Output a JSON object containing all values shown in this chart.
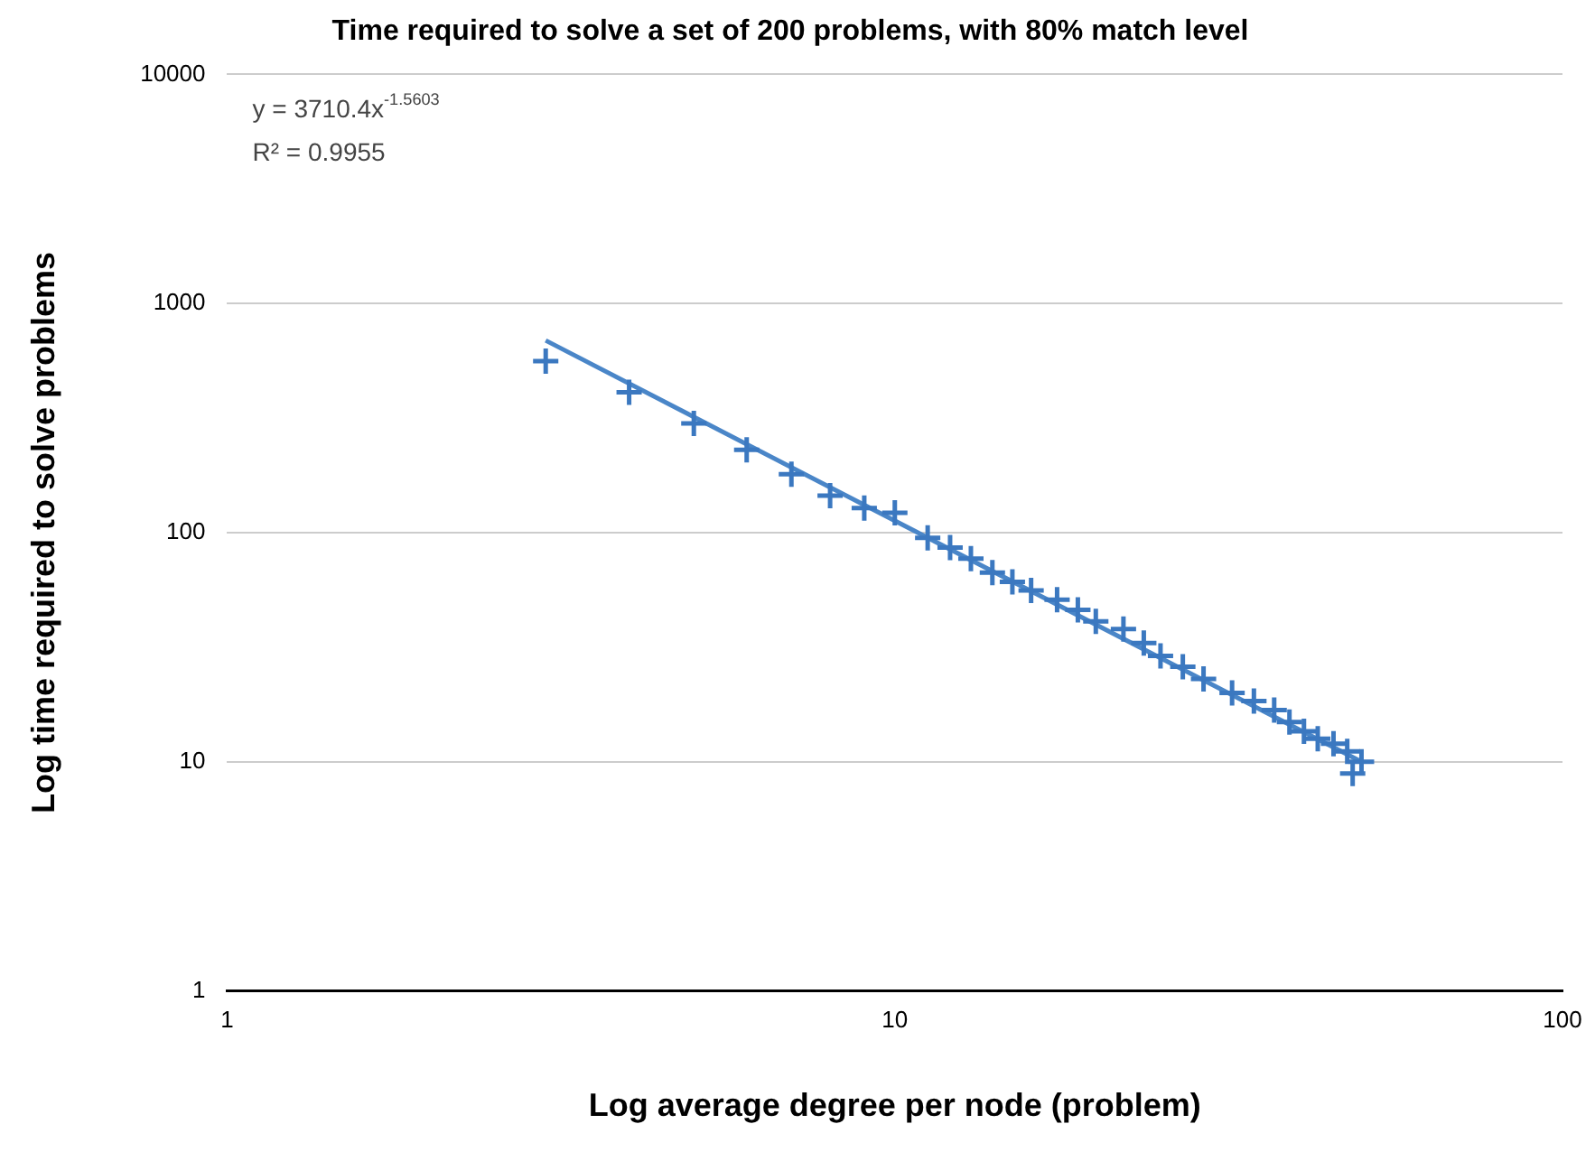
{
  "chart_data": {
    "type": "scatter",
    "title": "Time required to solve a set of 200 problems, with 80% match level",
    "xlabel": "Log average degree per node (problem)",
    "ylabel": "Log time required to solve problems",
    "annotations": [
      "y = 3710.4x$^{-1.5603}$",
      "R² = 0.9955"
    ],
    "log": "xy",
    "xlim": [
      1,
      100
    ],
    "xticks": [
      1,
      10,
      100
    ],
    "ylim": [
      1,
      10000
    ],
    "yticks": [
      1,
      10,
      100,
      1000,
      10000
    ],
    "grid": "y",
    "legend": false,
    "marker": "cross",
    "series": [
      {
        "color": "#3b78c0",
        "x": [
          3,
          4,
          5,
          6,
          7,
          8,
          9,
          10,
          11.2,
          12.1,
          13,
          14,
          15,
          16,
          17.5,
          18.8,
          20,
          22,
          23.6,
          25,
          27,
          29,
          32,
          34.5,
          37,
          39,
          41,
          43,
          45.4,
          47.6,
          50,
          48.5
        ],
        "values": [
          560,
          410,
          300,
          230,
          180,
          145,
          128,
          122,
          95,
          86,
          77,
          67,
          61,
          56,
          51,
          46,
          41,
          38,
          33,
          29,
          26,
          23,
          20,
          18.4,
          16.8,
          14.9,
          13.6,
          12.6,
          12,
          11.1,
          10,
          8.9
        ]
      },
      {
        "type": "line",
        "color": "#4a86c8",
        "marker": "none",
        "x": [
          3,
          50
        ],
        "values": [
          690,
          10
        ]
      }
    ]
  }
}
